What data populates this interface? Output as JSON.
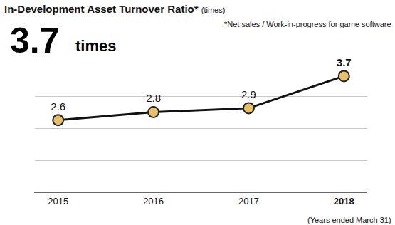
{
  "chart_data": {
    "type": "line",
    "title": "In-Development Asset Turnover Ratio*",
    "subtitle": "(times)",
    "footnote": "*Net sales / Work-in-progress for game software",
    "headline_value": 3.7,
    "headline_unit": "times",
    "note": "(Years ended March 31)",
    "categories": [
      "2015",
      "2016",
      "2017",
      "2018"
    ],
    "values": [
      2.6,
      2.8,
      2.9,
      3.7
    ],
    "color": "#e8c06a",
    "marker": "circle",
    "ylim": [
      0.8,
      4.0
    ],
    "yticks": [
      0.8,
      1.6,
      2.4,
      3.2,
      4.0
    ],
    "grid": true,
    "data_labels": true,
    "tick_labels": "x"
  }
}
